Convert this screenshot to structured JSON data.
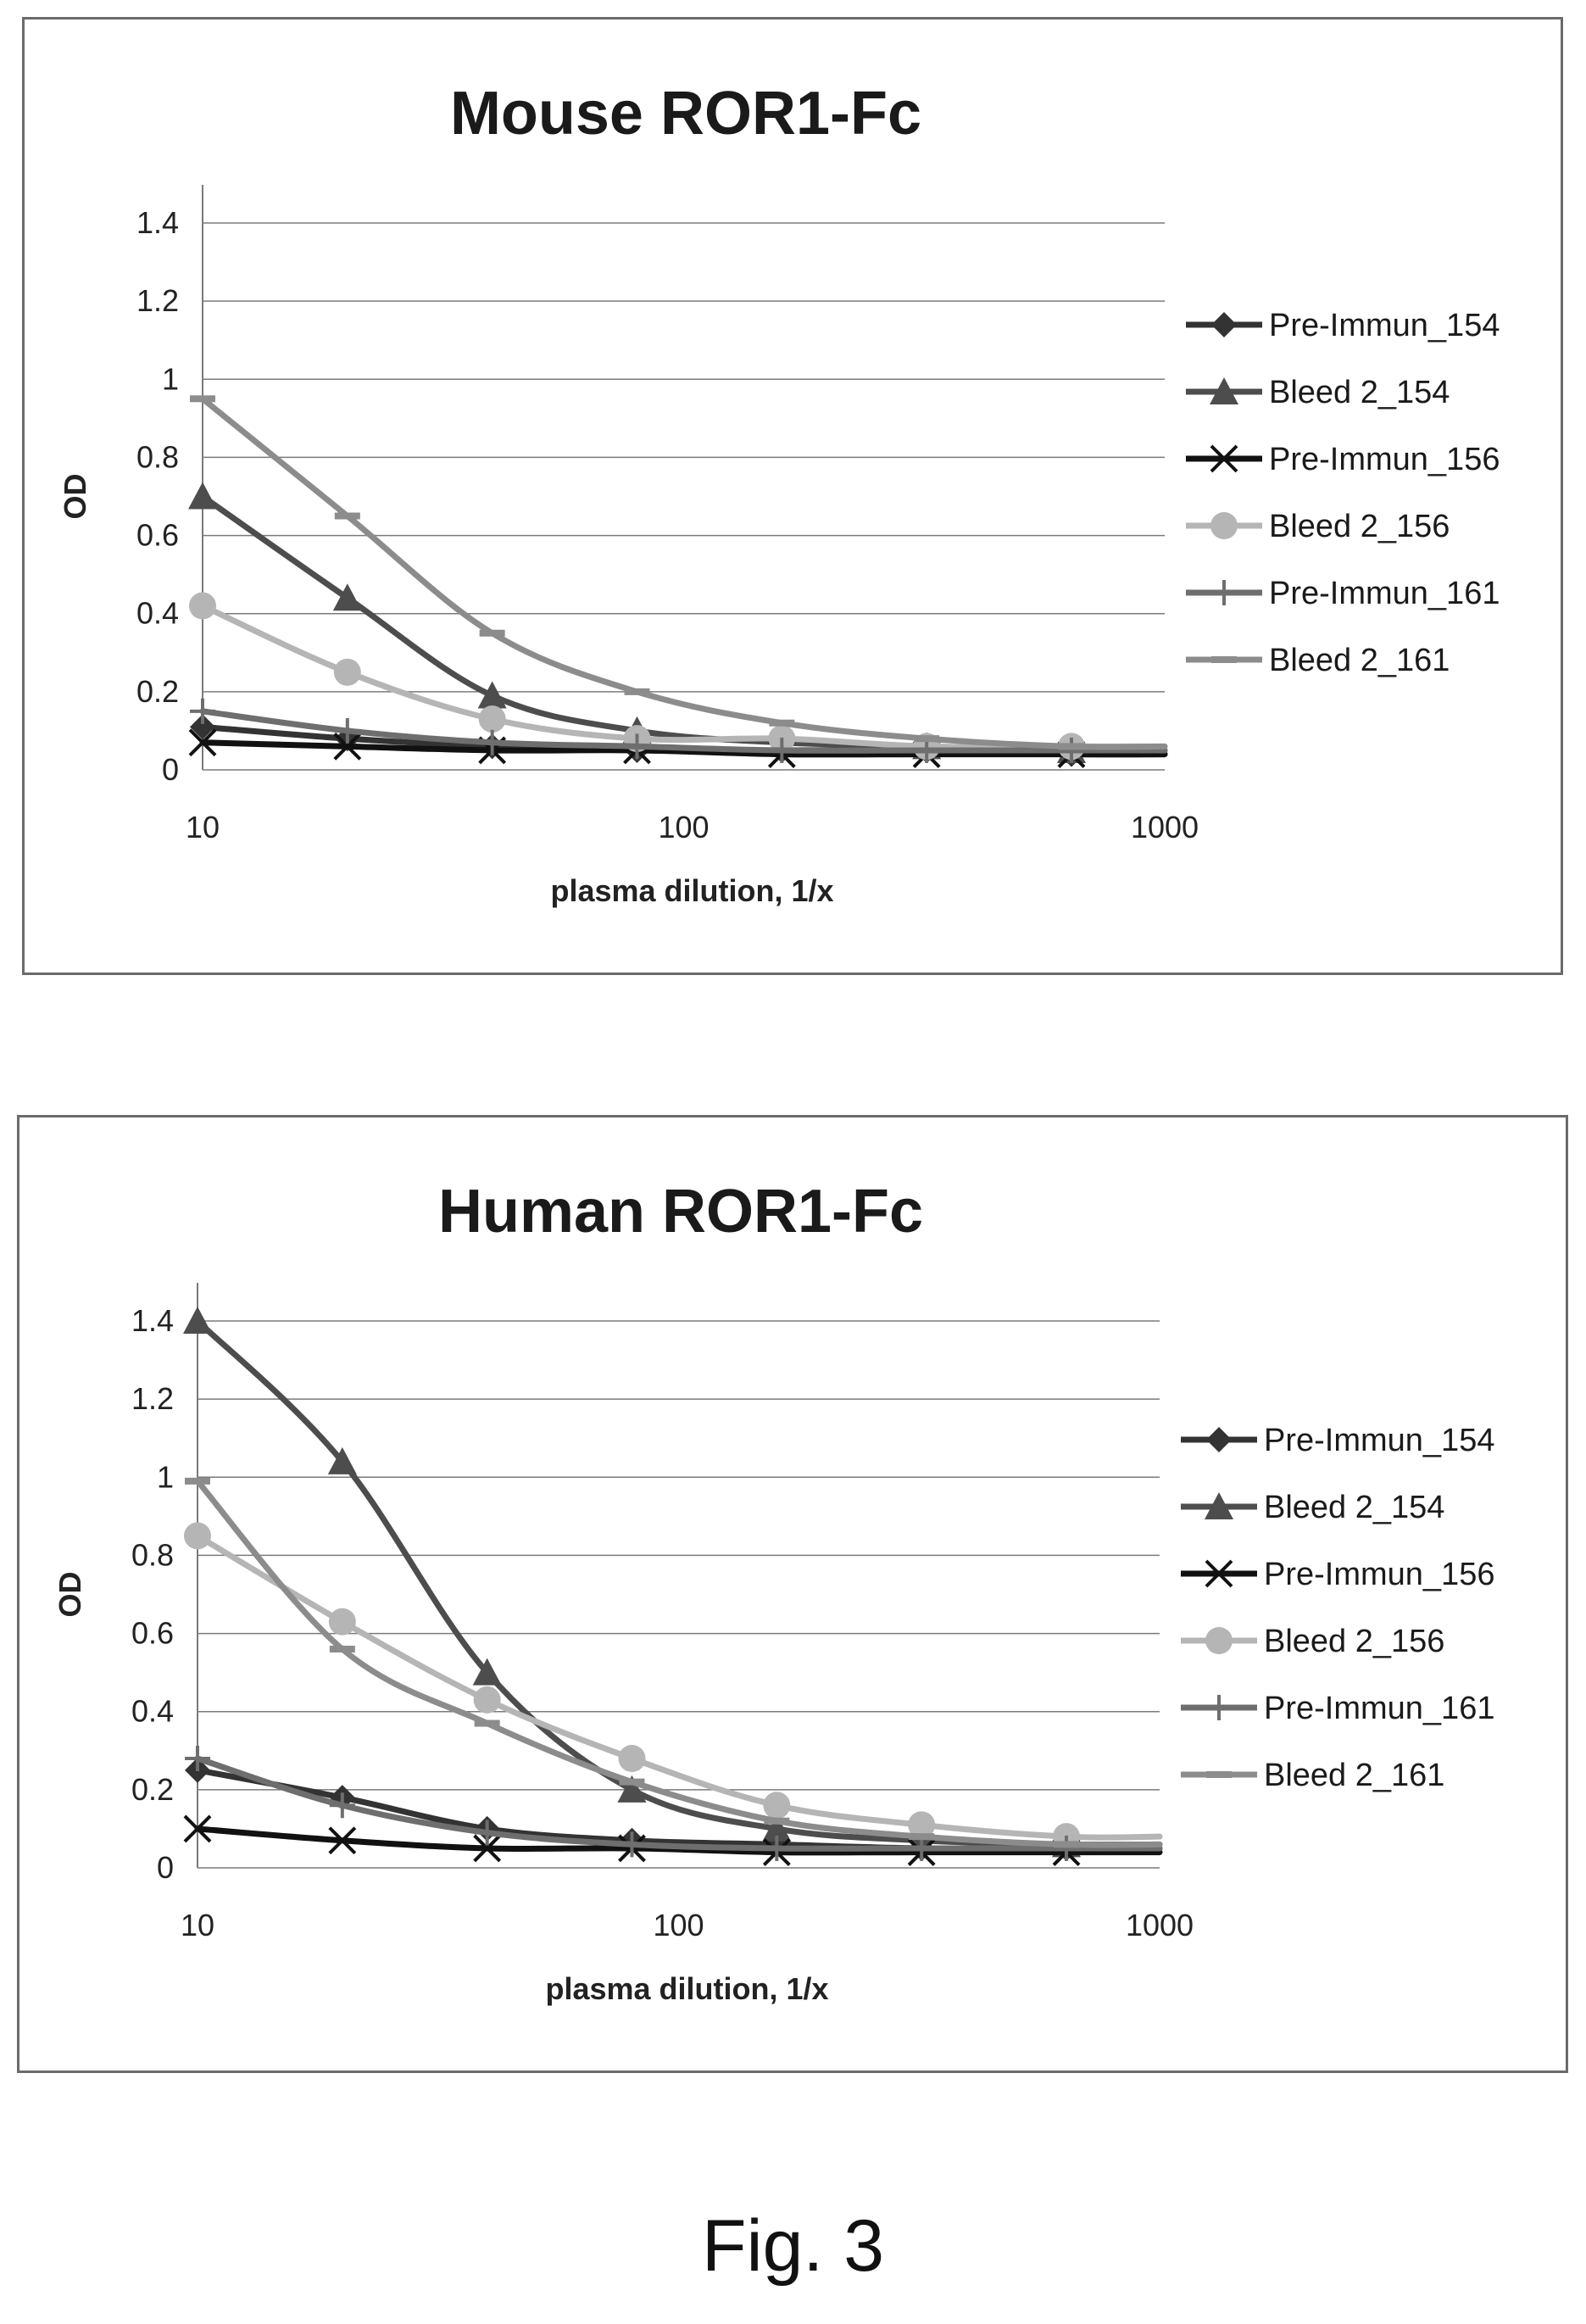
{
  "figure": {
    "caption": "Fig. 3"
  },
  "chart_data": [
    {
      "type": "line",
      "title": "Mouse ROR1-Fc",
      "xlabel": "plasma dilution, 1/x",
      "ylabel": "OD",
      "x_scale": "log",
      "xlim": [
        10,
        1000
      ],
      "ylim": [
        0,
        1.4
      ],
      "x_ticks": [
        "10",
        "100",
        "1000"
      ],
      "y_ticks": [
        "0",
        "0.2",
        "0.4",
        "0.6",
        "0.8",
        "1",
        "1.2",
        "1.4"
      ],
      "grid": "horizontal",
      "legend_position": "right",
      "x": [
        10,
        20,
        40,
        80,
        160,
        320,
        640
      ],
      "series": [
        {
          "name": "Pre-Immun_154",
          "marker": "diamond",
          "color": "#333333",
          "values": [
            0.11,
            0.08,
            0.06,
            0.05,
            0.05,
            0.05,
            0.04
          ]
        },
        {
          "name": "Bleed 2_154",
          "marker": "triangle",
          "color": "#4d4d4d",
          "values": [
            0.7,
            0.44,
            0.19,
            0.1,
            0.07,
            0.06,
            0.05
          ]
        },
        {
          "name": "Pre-Immun_156",
          "marker": "x",
          "color": "#111111",
          "values": [
            0.07,
            0.06,
            0.05,
            0.05,
            0.04,
            0.04,
            0.04
          ]
        },
        {
          "name": "Bleed 2_156",
          "marker": "circle",
          "color": "#b5b5b5",
          "values": [
            0.42,
            0.25,
            0.13,
            0.08,
            0.08,
            0.06,
            0.06
          ]
        },
        {
          "name": "Pre-Immun_161",
          "marker": "plus",
          "color": "#6e6e6e",
          "values": [
            0.15,
            0.1,
            0.07,
            0.06,
            0.05,
            0.05,
            0.05
          ]
        },
        {
          "name": "Bleed 2_161",
          "marker": "dash",
          "color": "#8c8c8c",
          "values": [
            0.95,
            0.65,
            0.35,
            0.2,
            0.12,
            0.08,
            0.06
          ]
        }
      ]
    },
    {
      "type": "line",
      "title": "Human ROR1-Fc",
      "xlabel": "plasma dilution, 1/x",
      "ylabel": "OD",
      "x_scale": "log",
      "xlim": [
        10,
        1000
      ],
      "ylim": [
        0,
        1.4
      ],
      "x_ticks": [
        "10",
        "100",
        "1000"
      ],
      "y_ticks": [
        "0",
        "0.2",
        "0.4",
        "0.6",
        "0.8",
        "1",
        "1.2",
        "1.4"
      ],
      "grid": "horizontal",
      "legend_position": "right",
      "x": [
        10,
        20,
        40,
        80,
        160,
        320,
        640
      ],
      "series": [
        {
          "name": "Pre-Immun_154",
          "marker": "diamond",
          "color": "#333333",
          "values": [
            0.25,
            0.18,
            0.1,
            0.07,
            0.06,
            0.05,
            0.05
          ]
        },
        {
          "name": "Bleed 2_154",
          "marker": "triangle",
          "color": "#4d4d4d",
          "values": [
            1.4,
            1.04,
            0.5,
            0.2,
            0.1,
            0.07,
            0.06
          ]
        },
        {
          "name": "Pre-Immun_156",
          "marker": "x",
          "color": "#111111",
          "values": [
            0.1,
            0.07,
            0.05,
            0.05,
            0.04,
            0.04,
            0.04
          ]
        },
        {
          "name": "Bleed 2_156",
          "marker": "circle",
          "color": "#b5b5b5",
          "values": [
            0.85,
            0.63,
            0.43,
            0.28,
            0.16,
            0.11,
            0.08
          ]
        },
        {
          "name": "Pre-Immun_161",
          "marker": "plus",
          "color": "#6e6e6e",
          "values": [
            0.28,
            0.16,
            0.09,
            0.06,
            0.05,
            0.05,
            0.05
          ]
        },
        {
          "name": "Bleed 2_161",
          "marker": "dash",
          "color": "#8c8c8c",
          "values": [
            0.99,
            0.56,
            0.37,
            0.22,
            0.12,
            0.08,
            0.06
          ]
        }
      ]
    }
  ]
}
